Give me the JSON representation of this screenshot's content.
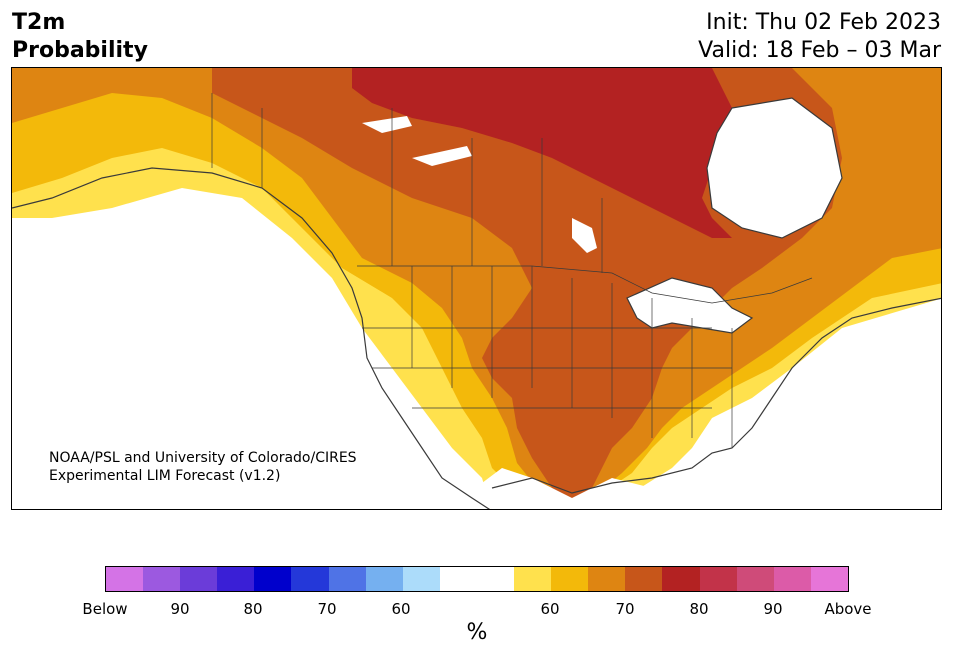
{
  "title": {
    "left_line1": "T2m",
    "left_line2": "Probability",
    "right_line1": "Init: Thu 02 Feb 2023",
    "right_line2": "Valid: 18 Feb – 03 Mar"
  },
  "credit": {
    "line1": "NOAA/PSL and University of Colorado/CIRES",
    "line2": "Experimental LIM Forecast (v1.2)"
  },
  "colors": {
    "below_95": "#d473e6",
    "below_90": "#9c59e0",
    "below_85": "#6b3cd9",
    "below_80": "#3a1fd6",
    "below_75": "#0000cc",
    "below_70": "#2438d9",
    "below_65": "#4f73e6",
    "below_60": "#75b0f0",
    "below_55": "#acdcfa",
    "neutral": "#ffffff",
    "above_55": "#ffe14d",
    "above_60": "#f3b90a",
    "above_65": "#de8512",
    "above_70": "#c7561a",
    "above_75": "#b32222",
    "above_80": "#c23349",
    "above_85": "#cf4b79",
    "above_90": "#dc5ba8",
    "above_95": "#e675d8",
    "coast": "#3a3a3a",
    "water": "#ffffff"
  },
  "colorbar": {
    "segments": [
      "below_95",
      "below_90",
      "below_85",
      "below_80",
      "below_75",
      "below_70",
      "below_65",
      "below_60",
      "below_55",
      "neutral",
      "neutral",
      "above_55",
      "above_60",
      "above_65",
      "above_70",
      "above_75",
      "above_80",
      "above_85",
      "above_90",
      "above_95"
    ],
    "ticks": [
      {
        "label": "Below"
      },
      {
        "label": "90"
      },
      {
        "label": "80"
      },
      {
        "label": "70"
      },
      {
        "label": "60"
      },
      {
        "label": "60"
      },
      {
        "label": "70"
      },
      {
        "label": "80"
      },
      {
        "label": "90"
      },
      {
        "label": "Above"
      }
    ],
    "unit": "%"
  }
}
